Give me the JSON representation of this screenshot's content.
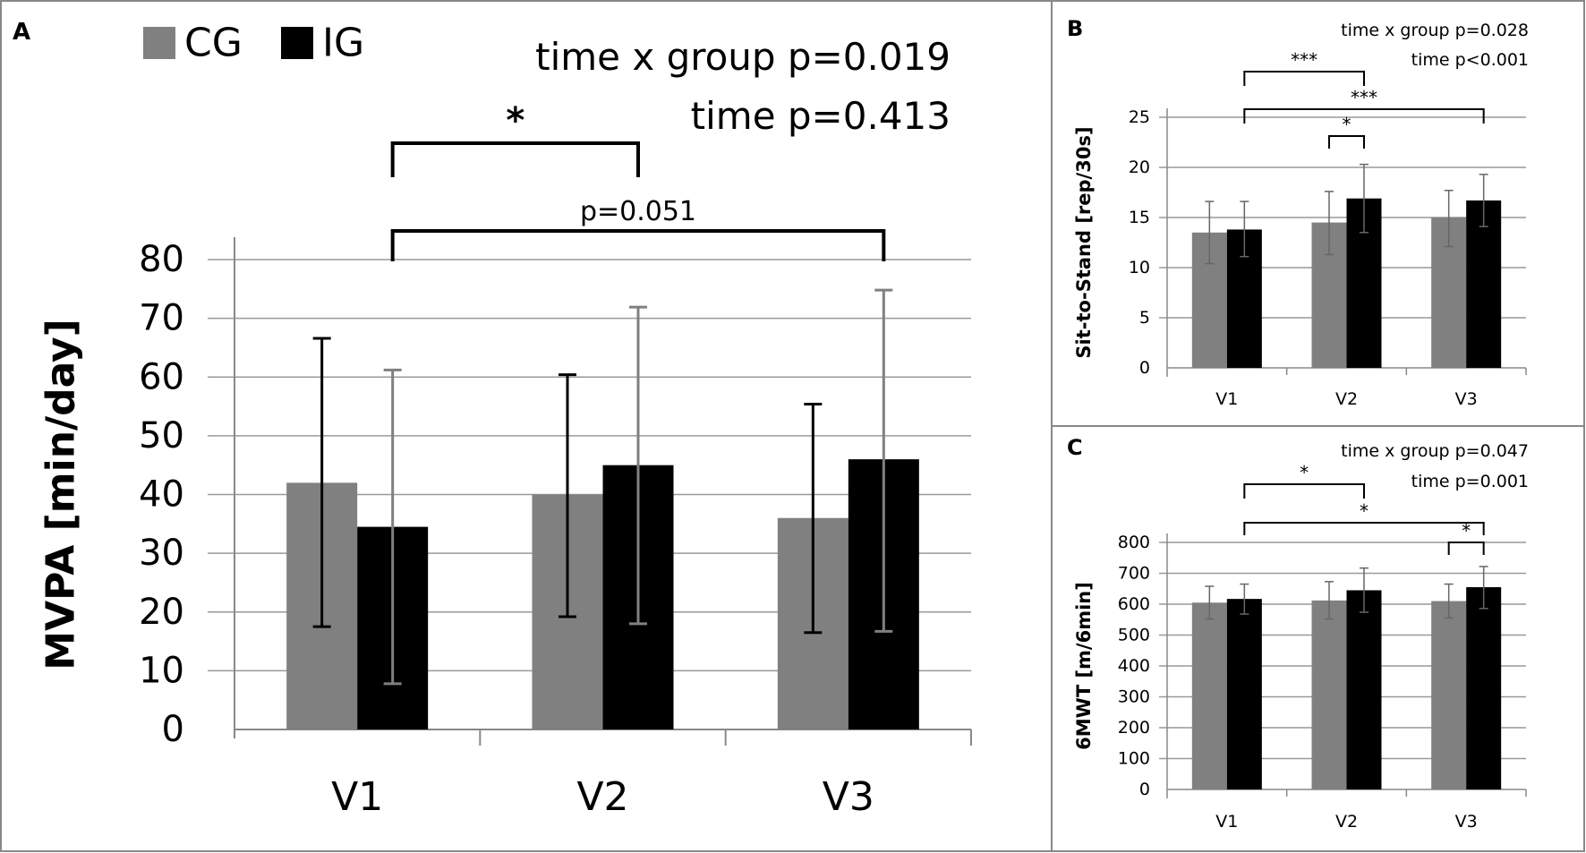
{
  "chart_data": [
    {
      "panel": "A",
      "type": "bar",
      "categories": [
        "V1",
        "V2",
        "V3"
      ],
      "series": [
        {
          "name": "CG",
          "color": "#808080",
          "values": [
            42,
            40,
            36
          ],
          "err_low": [
            17.5,
            19.2,
            16.5
          ],
          "err_high": [
            66.6,
            60.4,
            55.4
          ],
          "err_color": "#000000"
        },
        {
          "name": "IG",
          "color": "#000000",
          "values": [
            34.5,
            45,
            46
          ],
          "err_low": [
            7.8,
            18,
            16.7
          ],
          "err_high": [
            61.2,
            71.9,
            74.8
          ],
          "err_color": "#808080"
        }
      ],
      "ylabel": "MVPA [min/day]",
      "ylim": [
        0,
        80
      ],
      "yticks": [
        "0",
        "10",
        "20",
        "30",
        "40",
        "50",
        "60",
        "70",
        "80"
      ],
      "grid": true,
      "legend": "top-left",
      "stats": [
        "time x group p=0.019",
        "time p=0.413"
      ],
      "annotations": [
        {
          "label": "*",
          "from": "V1",
          "to": "V2"
        },
        {
          "label": "p=0.051",
          "from": "V1",
          "to": "V3"
        }
      ]
    },
    {
      "panel": "B",
      "type": "bar",
      "categories": [
        "V1",
        "V2",
        "V3"
      ],
      "series": [
        {
          "name": "CG",
          "color": "#808080",
          "values": [
            13.5,
            14.5,
            15
          ],
          "err_low": [
            10.4,
            11.3,
            12.1
          ],
          "err_high": [
            16.6,
            17.6,
            17.7
          ]
        },
        {
          "name": "IG",
          "color": "#000000",
          "values": [
            13.8,
            16.9,
            16.7
          ],
          "err_low": [
            11.1,
            13.5,
            14.1
          ],
          "err_high": [
            16.6,
            20.3,
            19.3
          ]
        }
      ],
      "ylabel": "Sit-to-Stand [rep/30s]",
      "ylim": [
        0,
        25
      ],
      "yticks": [
        "0",
        "5",
        "10",
        "15",
        "20",
        "25"
      ],
      "grid": true,
      "stats": [
        "time x group p=0.028",
        "time p<0.001"
      ],
      "annotations": [
        {
          "label": "***",
          "from": "V1",
          "to": "V2"
        },
        {
          "label": "***",
          "from": "V1",
          "to": "V3"
        },
        {
          "label": "*",
          "from": "V2",
          "to": "V2",
          "within": true
        }
      ]
    },
    {
      "panel": "C",
      "type": "bar",
      "categories": [
        "V1",
        "V2",
        "V3"
      ],
      "series": [
        {
          "name": "CG",
          "color": "#808080",
          "values": [
            605,
            612,
            610
          ],
          "err_low": [
            552,
            552,
            555
          ],
          "err_high": [
            658,
            673,
            665
          ]
        },
        {
          "name": "IG",
          "color": "#000000",
          "values": [
            617,
            645,
            655
          ],
          "err_low": [
            568,
            574,
            586
          ],
          "err_high": [
            665,
            717,
            722
          ]
        }
      ],
      "ylabel": "6MWT [m/6min]",
      "ylim": [
        0,
        800
      ],
      "yticks": [
        "0",
        "100",
        "200",
        "300",
        "400",
        "500",
        "600",
        "700",
        "800"
      ],
      "grid": true,
      "stats": [
        "time x group p=0.047",
        "time p=0.001"
      ],
      "annotations": [
        {
          "label": "*",
          "from": "V1",
          "to": "V2"
        },
        {
          "label": "*",
          "from": "V1",
          "to": "V3"
        },
        {
          "label": "*",
          "from": "V3",
          "to": "V3",
          "within": true
        }
      ]
    }
  ]
}
